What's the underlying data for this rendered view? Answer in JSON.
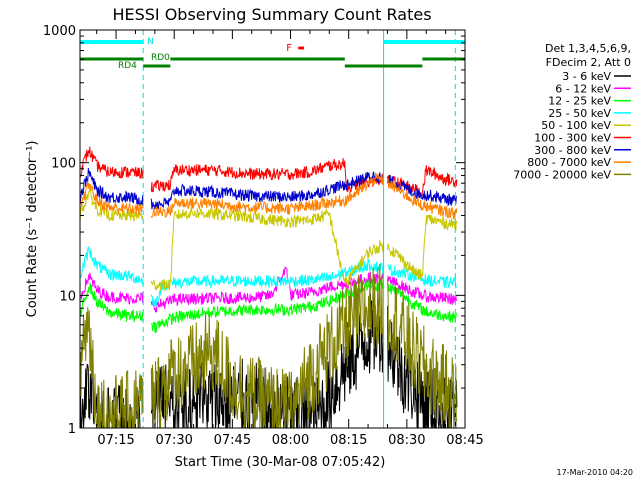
{
  "chart_data": {
    "type": "line",
    "title": "HESSI Observing Summary Count Rates",
    "xlabel": "Start Time (30-Mar-08 07:05:42)",
    "ylabel": "Count Rate (s⁻¹ detector⁻¹)",
    "y_scale": "log",
    "ylim": [
      1,
      1000
    ],
    "xlim": [
      "07:05:42",
      "08:45:00"
    ],
    "x_ticks": [
      "07:15",
      "07:30",
      "07:45",
      "08:00",
      "08:15",
      "08:30",
      "08:45"
    ],
    "y_ticks": [
      "1",
      "10",
      "100",
      "1000"
    ],
    "legend_title_lines": [
      "Det 1,3,4,5,6,9,",
      "FDecim 2, Att 0"
    ],
    "legend_position": "right",
    "footer_timestamp": "17-Mar-2010 04:20",
    "markers": {
      "night_vertical_lines": [
        "07:05:42",
        "08:24:00"
      ],
      "saa_vertical_lines": [
        "07:22:00",
        "08:42:30"
      ],
      "N_label": "N",
      "F_label": "F",
      "RD4_label": "RD4",
      "RD0_label": "RD0",
      "night_bars": [
        [
          "07:05:42",
          "07:22:00"
        ],
        [
          "08:24:00",
          "08:45:00"
        ]
      ],
      "rd_bars": [
        [
          "07:05:42",
          "07:22:00"
        ],
        [
          "07:22:00",
          "07:29:00"
        ],
        [
          "07:29:00",
          "08:14:00"
        ],
        [
          "08:14:00",
          "08:34:00"
        ],
        [
          "08:34:00",
          "08:45:00"
        ]
      ],
      "flare_bar": [
        "08:02:00",
        "08:03:30"
      ]
    },
    "gaps": [
      [
        "07:22:00",
        "07:24:00"
      ],
      [
        "08:24:00",
        "08:25:00"
      ]
    ],
    "series": [
      {
        "name": "3 - 6 keV",
        "color": "#000000",
        "points": [
          [
            "07:05:42",
            1.1
          ],
          [
            "07:08:00",
            2.2
          ],
          [
            "07:10:00",
            1.4
          ],
          [
            "07:13:00",
            1.1
          ],
          [
            "07:18:00",
            1.0
          ],
          [
            "07:22:00",
            1.0
          ],
          [
            "07:25:00",
            1.8
          ],
          [
            "07:30:00",
            1.5
          ],
          [
            "07:40:00",
            1.6
          ],
          [
            "07:50:00",
            1.6
          ],
          [
            "07:55:00",
            1.3
          ],
          [
            "08:00:00",
            1.2
          ],
          [
            "08:06:00",
            1.1
          ],
          [
            "08:10:00",
            1.8
          ],
          [
            "08:15:00",
            3.2
          ],
          [
            "08:20:00",
            5.0
          ],
          [
            "08:24:00",
            5.5
          ],
          [
            "08:28:00",
            3.0
          ],
          [
            "08:32:00",
            2.0
          ],
          [
            "08:35:00",
            1.5
          ],
          [
            "08:40:00",
            1.2
          ],
          [
            "08:43:00",
            1.1
          ]
        ]
      },
      {
        "name": "6 - 12 keV",
        "color": "#ff00ff",
        "points": [
          [
            "07:05:42",
            9.5
          ],
          [
            "07:08:00",
            14
          ],
          [
            "07:10:00",
            11
          ],
          [
            "07:13:00",
            9.8
          ],
          [
            "07:18:00",
            9.5
          ],
          [
            "07:22:00",
            9.5
          ],
          [
            "07:25:00",
            8.2
          ],
          [
            "07:30:00",
            9.3
          ],
          [
            "07:40:00",
            9.5
          ],
          [
            "07:50:00",
            9.6
          ],
          [
            "07:55:00",
            10
          ],
          [
            "07:59:00",
            16
          ],
          [
            "08:00:00",
            10
          ],
          [
            "08:05:00",
            10.5
          ],
          [
            "08:10:00",
            11.5
          ],
          [
            "08:15:00",
            12.5
          ],
          [
            "08:20:00",
            13.5
          ],
          [
            "08:24:00",
            13.5
          ],
          [
            "08:28:00",
            12
          ],
          [
            "08:32:00",
            10.5
          ],
          [
            "08:35:00",
            9.8
          ],
          [
            "08:40:00",
            9.5
          ],
          [
            "08:43:00",
            9.3
          ]
        ]
      },
      {
        "name": "12 - 25 keV",
        "color": "#00ff00",
        "points": [
          [
            "07:05:42",
            7
          ],
          [
            "07:08:00",
            12
          ],
          [
            "07:10:00",
            9
          ],
          [
            "07:13:00",
            7.5
          ],
          [
            "07:18:00",
            7
          ],
          [
            "07:22:00",
            7
          ],
          [
            "07:25:00",
            5.8
          ],
          [
            "07:30:00",
            6.8
          ],
          [
            "07:40:00",
            7.5
          ],
          [
            "07:50:00",
            7.8
          ],
          [
            "08:00:00",
            7.8
          ],
          [
            "08:05:00",
            8.2
          ],
          [
            "08:10:00",
            9
          ],
          [
            "08:15:00",
            10.5
          ],
          [
            "08:20:00",
            12
          ],
          [
            "08:24:00",
            12
          ],
          [
            "08:28:00",
            10.5
          ],
          [
            "08:32:00",
            8.5
          ],
          [
            "08:35:00",
            7.5
          ],
          [
            "08:40:00",
            7
          ],
          [
            "08:43:00",
            6.8
          ]
        ]
      },
      {
        "name": "25 - 50 keV",
        "color": "#00ffff",
        "points": [
          [
            "07:05:42",
            14
          ],
          [
            "07:08:00",
            22
          ],
          [
            "07:10:00",
            17
          ],
          [
            "07:13:00",
            14.5
          ],
          [
            "07:18:00",
            14
          ],
          [
            "07:22:00",
            13
          ],
          [
            "07:25:00",
            8.5
          ],
          [
            "07:27:00",
            12
          ],
          [
            "07:30:00",
            12.5
          ],
          [
            "07:40:00",
            12.8
          ],
          [
            "07:50:00",
            12.8
          ],
          [
            "08:00:00",
            12.8
          ],
          [
            "08:05:00",
            13
          ],
          [
            "08:10:00",
            13.5
          ],
          [
            "08:15:00",
            15
          ],
          [
            "08:20:00",
            17
          ],
          [
            "08:24:00",
            16
          ],
          [
            "08:28:00",
            15
          ],
          [
            "08:32:00",
            14
          ],
          [
            "08:35:00",
            13
          ],
          [
            "08:40:00",
            12.5
          ],
          [
            "08:43:00",
            12.5
          ]
        ]
      },
      {
        "name": "50 - 100 keV",
        "color": "#c8c800",
        "points": [
          [
            "07:05:42",
            40
          ],
          [
            "07:08:00",
            60
          ],
          [
            "07:10:00",
            45
          ],
          [
            "07:13:00",
            40
          ],
          [
            "07:18:00",
            40
          ],
          [
            "07:22:00",
            40
          ],
          [
            "07:23:00",
            12
          ],
          [
            "07:29:00",
            12
          ],
          [
            "07:30:00",
            40
          ],
          [
            "07:35:00",
            42
          ],
          [
            "07:45:00",
            40
          ],
          [
            "07:55:00",
            37
          ],
          [
            "08:00:00",
            36
          ],
          [
            "08:05:00",
            37
          ],
          [
            "08:10:00",
            41
          ],
          [
            "08:14:00",
            12
          ],
          [
            "08:16:00",
            14.5
          ],
          [
            "08:20:00",
            21
          ],
          [
            "08:24:00",
            24
          ],
          [
            "08:27:00",
            21
          ],
          [
            "08:32:00",
            15
          ],
          [
            "08:34:00",
            14
          ],
          [
            "08:35:00",
            38
          ],
          [
            "08:40:00",
            35
          ],
          [
            "08:43:00",
            34
          ]
        ]
      },
      {
        "name": "100 - 300 keV",
        "color": "#ff0000",
        "points": [
          [
            "07:05:42",
            85
          ],
          [
            "07:08:00",
            125
          ],
          [
            "07:10:00",
            95
          ],
          [
            "07:13:00",
            85
          ],
          [
            "07:18:00",
            85
          ],
          [
            "07:22:00",
            83
          ],
          [
            "07:23:00",
            65
          ],
          [
            "07:29:00",
            68
          ],
          [
            "07:30:00",
            88
          ],
          [
            "07:40:00",
            88
          ],
          [
            "07:50:00",
            82
          ],
          [
            "08:00:00",
            82
          ],
          [
            "08:05:00",
            85
          ],
          [
            "08:10:00",
            95
          ],
          [
            "08:14:00",
            98
          ],
          [
            "08:14:30",
            65
          ],
          [
            "08:20:00",
            72
          ],
          [
            "08:24:00",
            75
          ],
          [
            "08:28:00",
            70
          ],
          [
            "08:34:00",
            60
          ],
          [
            "08:35:00",
            88
          ],
          [
            "08:40:00",
            75
          ],
          [
            "08:43:00",
            72
          ]
        ]
      },
      {
        "name": "300 - 800 keV",
        "color": "#0000cc",
        "points": [
          [
            "07:05:42",
            55
          ],
          [
            "07:08:00",
            85
          ],
          [
            "07:10:00",
            62
          ],
          [
            "07:13:00",
            55
          ],
          [
            "07:18:00",
            55
          ],
          [
            "07:22:00",
            52
          ],
          [
            "07:23:00",
            48
          ],
          [
            "07:29:00",
            50
          ],
          [
            "07:30:00",
            62
          ],
          [
            "07:40:00",
            60
          ],
          [
            "07:50:00",
            56
          ],
          [
            "08:00:00",
            55
          ],
          [
            "08:05:00",
            57
          ],
          [
            "08:10:00",
            63
          ],
          [
            "08:14:00",
            68
          ],
          [
            "08:17:00",
            72
          ],
          [
            "08:21:00",
            80
          ],
          [
            "08:24:00",
            76
          ],
          [
            "08:28:00",
            68
          ],
          [
            "08:33:00",
            58
          ],
          [
            "08:37:00",
            56
          ],
          [
            "08:43:00",
            51
          ]
        ]
      },
      {
        "name": "800 - 7000 keV",
        "color": "#ff8000",
        "points": [
          [
            "07:05:42",
            45
          ],
          [
            "07:08:00",
            70
          ],
          [
            "07:10:00",
            52
          ],
          [
            "07:13:00",
            46
          ],
          [
            "07:18:00",
            45
          ],
          [
            "07:22:00",
            44
          ],
          [
            "07:23:00",
            42
          ],
          [
            "07:29:00",
            43
          ],
          [
            "07:30:00",
            50
          ],
          [
            "07:40:00",
            49
          ],
          [
            "07:50:00",
            46
          ],
          [
            "08:00:00",
            45
          ],
          [
            "08:05:00",
            47
          ],
          [
            "08:10:00",
            50
          ],
          [
            "08:14:00",
            52
          ],
          [
            "08:18:00",
            62
          ],
          [
            "08:22:00",
            76
          ],
          [
            "08:24:00",
            74
          ],
          [
            "08:28:00",
            62
          ],
          [
            "08:33:00",
            49
          ],
          [
            "08:37:00",
            45
          ],
          [
            "08:43:00",
            41
          ]
        ]
      },
      {
        "name": "7000 - 20000 keV",
        "color": "#808000",
        "points": [
          [
            "07:05:42",
            2.2
          ],
          [
            "07:06:30",
            5
          ],
          [
            "07:08:00",
            6
          ],
          [
            "07:09:00",
            3
          ],
          [
            "07:10:00",
            1.4
          ],
          [
            "07:13:00",
            1.2
          ],
          [
            "07:18:00",
            1.3
          ],
          [
            "07:22:00",
            1.6
          ],
          [
            "07:25:00",
            1.7
          ],
          [
            "07:30:00",
            2.6
          ],
          [
            "07:35:00",
            3
          ],
          [
            "07:40:00",
            3.8
          ],
          [
            "07:45:00",
            2.2
          ],
          [
            "07:50:00",
            1.7
          ],
          [
            "07:55:00",
            1.5
          ],
          [
            "08:00:00",
            1.3
          ],
          [
            "08:05:00",
            2.5
          ],
          [
            "08:10:00",
            4
          ],
          [
            "08:15:00",
            6
          ],
          [
            "08:20:00",
            8
          ],
          [
            "08:24:00",
            8.5
          ],
          [
            "08:28:00",
            6
          ],
          [
            "08:32:00",
            3.5
          ],
          [
            "08:36:00",
            2.5
          ],
          [
            "08:40:00",
            2
          ],
          [
            "08:43:00",
            1.6
          ]
        ]
      }
    ]
  }
}
